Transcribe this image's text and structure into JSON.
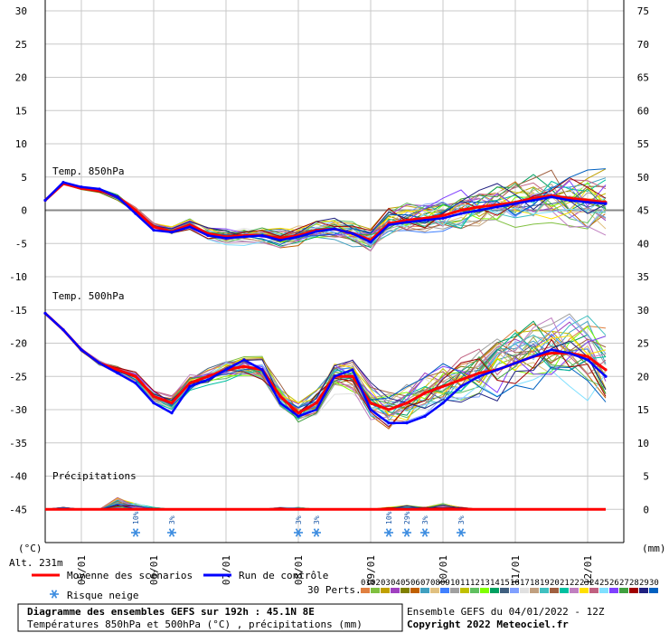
{
  "chart_data": {
    "type": "line",
    "title": "Diagramme des ensembles GEFS sur 192h : 45.1N 8E",
    "subtitle": "Températures 850hPa et 500hPa (°C) , précipitations (mm)",
    "left_unit": "(°C)",
    "right_unit": "(mm)",
    "altitude": "Alt. 231m",
    "left_axis": {
      "min": -50,
      "max": 30,
      "ticks": [
        30,
        25,
        20,
        15,
        10,
        5,
        0,
        -5,
        -10,
        -15,
        -20,
        -25,
        -30,
        -35,
        -40,
        -45
      ]
    },
    "right_axis": {
      "ticks": [
        75,
        70,
        65,
        60,
        55,
        50,
        45,
        40,
        35,
        30,
        25,
        20,
        15,
        10,
        5,
        0
      ]
    },
    "x_range": [
      0,
      32
    ],
    "date_labels": [
      {
        "x": 2,
        "label": "05/01"
      },
      {
        "x": 6,
        "label": "06/01"
      },
      {
        "x": 10,
        "label": "07/01"
      },
      {
        "x": 14,
        "label": "08/01"
      },
      {
        "x": 18,
        "label": "09/01"
      },
      {
        "x": 22,
        "label": "10/01"
      },
      {
        "x": 26,
        "label": "11/01"
      },
      {
        "x": 30,
        "label": "12/01"
      }
    ],
    "panel_labels": {
      "t850": "Temp. 850hPa",
      "t500": "Temp. 500hPa",
      "precip": "Précipitations"
    },
    "series": [
      {
        "name": "Moyenne des scénarios",
        "color": "#ff0000",
        "t850": [
          1.5,
          4,
          3.3,
          3,
          2,
          0,
          -2.5,
          -3.2,
          -2.2,
          -3.5,
          -4,
          -3.8,
          -3.8,
          -4.2,
          -3.8,
          -3,
          -2.8,
          -3.5,
          -4.5,
          -2,
          -1.5,
          -1.2,
          -0.8,
          0,
          0.5,
          0.8,
          1.2,
          1.8,
          2.2,
          1.8,
          1.5,
          1.2
        ],
        "t500": [
          -15.5,
          -18,
          -21,
          -23,
          -24,
          -25,
          -28,
          -29,
          -26,
          -25,
          -24,
          -23.5,
          -24,
          -28,
          -30.5,
          -29,
          -25,
          -25,
          -29,
          -30,
          -29,
          -27.5,
          -26.5,
          -25.5,
          -24.5,
          -24,
          -23,
          -22,
          -21.5,
          -21.5,
          -22,
          -24
        ]
      },
      {
        "name": "Run de contrôle",
        "color": "#0000ff",
        "t850": [
          1.5,
          4.2,
          3.5,
          3.2,
          2,
          -0.5,
          -3,
          -3.3,
          -2.5,
          -3.8,
          -4.2,
          -4,
          -3.8,
          -4.5,
          -4,
          -3.2,
          -2.8,
          -3.5,
          -4.8,
          -2.2,
          -1.8,
          -1.5,
          -1.2,
          -0.5,
          0,
          0.5,
          1,
          1.5,
          2,
          1.5,
          1.2,
          1
        ],
        "t500": [
          -15.5,
          -18,
          -21,
          -23,
          -24.5,
          -26,
          -29,
          -30.5,
          -26.5,
          -25.5,
          -24,
          -22.5,
          -24,
          -29,
          -31,
          -30,
          -25,
          -24,
          -30,
          -32,
          -32,
          -31,
          -29,
          -26.5,
          -25,
          -24,
          -23,
          -22,
          -21,
          -21.5,
          -22.5,
          -25
        ]
      }
    ],
    "precip": {
      "mean": [
        0,
        0,
        0,
        0,
        0,
        0,
        0,
        0,
        0,
        0,
        0,
        0,
        0,
        0,
        0,
        0,
        0,
        0,
        0,
        0,
        0,
        0,
        0,
        0,
        0,
        0,
        0,
        0,
        0,
        0,
        0,
        0
      ],
      "max": [
        0,
        0.5,
        0,
        0,
        3,
        1.5,
        0.5,
        0,
        0,
        0,
        0,
        0,
        0,
        0.5,
        0.5,
        0,
        0,
        0,
        0,
        0.5,
        1,
        0.5,
        1.5,
        0.5,
        0,
        0,
        0,
        0,
        0,
        0,
        0,
        0
      ]
    },
    "snow_risk": [
      {
        "x": 5,
        "label": "10%"
      },
      {
        "x": 7,
        "label": "3%"
      },
      {
        "x": 14,
        "label": "3%"
      },
      {
        "x": 15,
        "label": "3%"
      },
      {
        "x": 19,
        "label": "10%"
      },
      {
        "x": 20,
        "label": "29%"
      },
      {
        "x": 21,
        "label": "3%"
      },
      {
        "x": 23,
        "label": "3%"
      }
    ],
    "grid": true,
    "legend": {
      "mean": "Moyenne des scénarios",
      "control": "Run de contrôle",
      "snow": "Risque neige",
      "perts_label": "30 Perts.",
      "perts": [
        "01",
        "02",
        "03",
        "04",
        "05",
        "06",
        "07",
        "08",
        "09",
        "10",
        "11",
        "12",
        "13",
        "14",
        "15",
        "16",
        "17",
        "18",
        "19",
        "20",
        "21",
        "22",
        "23",
        "24",
        "25",
        "26",
        "27",
        "28",
        "29",
        "30"
      ],
      "pert_colors": [
        "#e08040",
        "#80c040",
        "#c0a000",
        "#a040c0",
        "#808000",
        "#c06000",
        "#40a0c0",
        "#e0c080",
        "#4080ff",
        "#a0a0a0",
        "#c0c000",
        "#60c060",
        "#80ff00",
        "#00a060",
        "#406080",
        "#80a0ff",
        "#e0e0e0",
        "#c0a080",
        "#40c0c0",
        "#a06040",
        "#00c0a0",
        "#c080c0",
        "#ffe000",
        "#c06080",
        "#80e0ff",
        "#8040ff",
        "#40a040",
        "#a00000",
        "#202080",
        "#0060c0"
      ]
    },
    "footer": {
      "ensemble": "Ensemble GEFS du 04/01/2022 - 12Z",
      "copyright": "Copyright 2022 Meteociel.fr"
    }
  }
}
